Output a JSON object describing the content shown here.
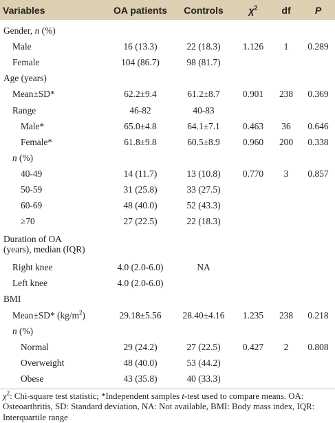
{
  "table": {
    "header": [
      "Variables",
      "OA patients",
      "Controls",
      [
        "χ",
        "2"
      ],
      "df",
      "P"
    ],
    "rows": [
      [
        [
          "Gender, ",
          "n",
          " (%)"
        ]
      ],
      [
        "Male",
        "16 (13.3)",
        "22 (18.3)",
        "1.126",
        "1",
        "0.289"
      ],
      [
        "Female",
        "104 (86.7)",
        "98 (81.7)"
      ],
      [
        "Age (years)"
      ],
      [
        "Mean±SD*",
        "62.2±9.4",
        "61.2±8.7",
        "0.901",
        "238",
        "0.369"
      ],
      [
        "Range",
        "46-82",
        "40-83"
      ],
      [
        "Male*",
        "65.0±4.8",
        "64.1±7.1",
        "0.463",
        "36",
        "0.646"
      ],
      [
        "Female*",
        "61.8±9.8",
        "60.5±8.9",
        "0.960",
        "200",
        "0.338"
      ],
      [
        [
          "n",
          " (%)"
        ]
      ],
      [
        "40-49",
        "14 (11.7)",
        "13 (10.8)",
        "0.770",
        "3",
        "0.857"
      ],
      [
        "50-59",
        "31 (25.8)",
        "33 (27.5)"
      ],
      [
        "60-69",
        "48 (40.0)",
        "52 (43.3)"
      ],
      [
        "≥70",
        "27 (22.5)",
        "22 (18.3)"
      ],
      [
        "Duration of OA (years), median (IQR)"
      ],
      [
        "Right knee",
        "4.0 (2.0-6.0)",
        "NA"
      ],
      [
        "Left knee",
        "4.0 (2.0-6.0)"
      ],
      [
        "BMI"
      ],
      [
        [
          "Mean±SD* (kg/m",
          "2",
          ")"
        ],
        "29.18±5.56",
        "28.40±4.16",
        "1.235",
        "238",
        "0.218"
      ],
      [
        [
          "n",
          " (%)"
        ]
      ],
      [
        "Normal",
        "29 (24.2)",
        "27 (22.5)",
        "0.427",
        "2",
        "0.808"
      ],
      [
        "Overweight",
        "48 (40.0)",
        "53 (44.2)"
      ],
      [
        "Obese",
        "43 (35.8)",
        "40 (33.3)"
      ]
    ],
    "footnote": [
      "χ",
      "2",
      ": Chi-square test statistic; *Independent samples ",
      "t",
      "-test used to compare means. OA: Osteoarthritis, SD: Standard deviation, NA: Not available, BMI: Body mass index, IQR: Interquartile range"
    ]
  }
}
